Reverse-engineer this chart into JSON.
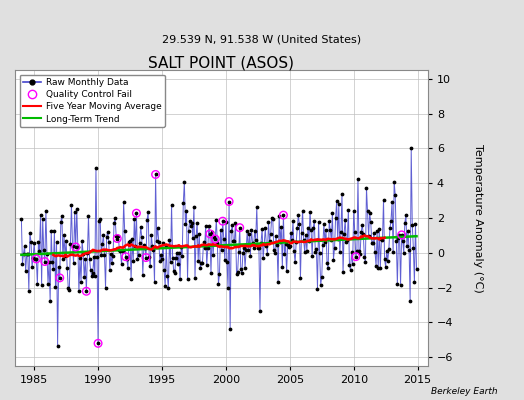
{
  "title": "SALT POINT (ASOS)",
  "subtitle": "29.539 N, 91.538 W (United States)",
  "ylabel": "Temperature Anomaly (°C)",
  "xlabel_credit": "Berkeley Earth",
  "xlim": [
    1983.5,
    2015.8
  ],
  "ylim": [
    -6.5,
    10.5
  ],
  "yticks": [
    -6,
    -4,
    -2,
    0,
    2,
    4,
    6,
    8,
    10
  ],
  "xticks": [
    1985,
    1990,
    1995,
    2000,
    2005,
    2010,
    2015
  ],
  "background_color": "#e0e0e0",
  "plot_bg_color": "#ffffff",
  "grid_color": "#c0c0c0",
  "raw_line_color": "#4444cc",
  "raw_dot_color": "#000000",
  "moving_avg_color": "#ff0000",
  "trend_color": "#00bb00",
  "qc_fail_color": "#ff00ff",
  "seed": 7
}
